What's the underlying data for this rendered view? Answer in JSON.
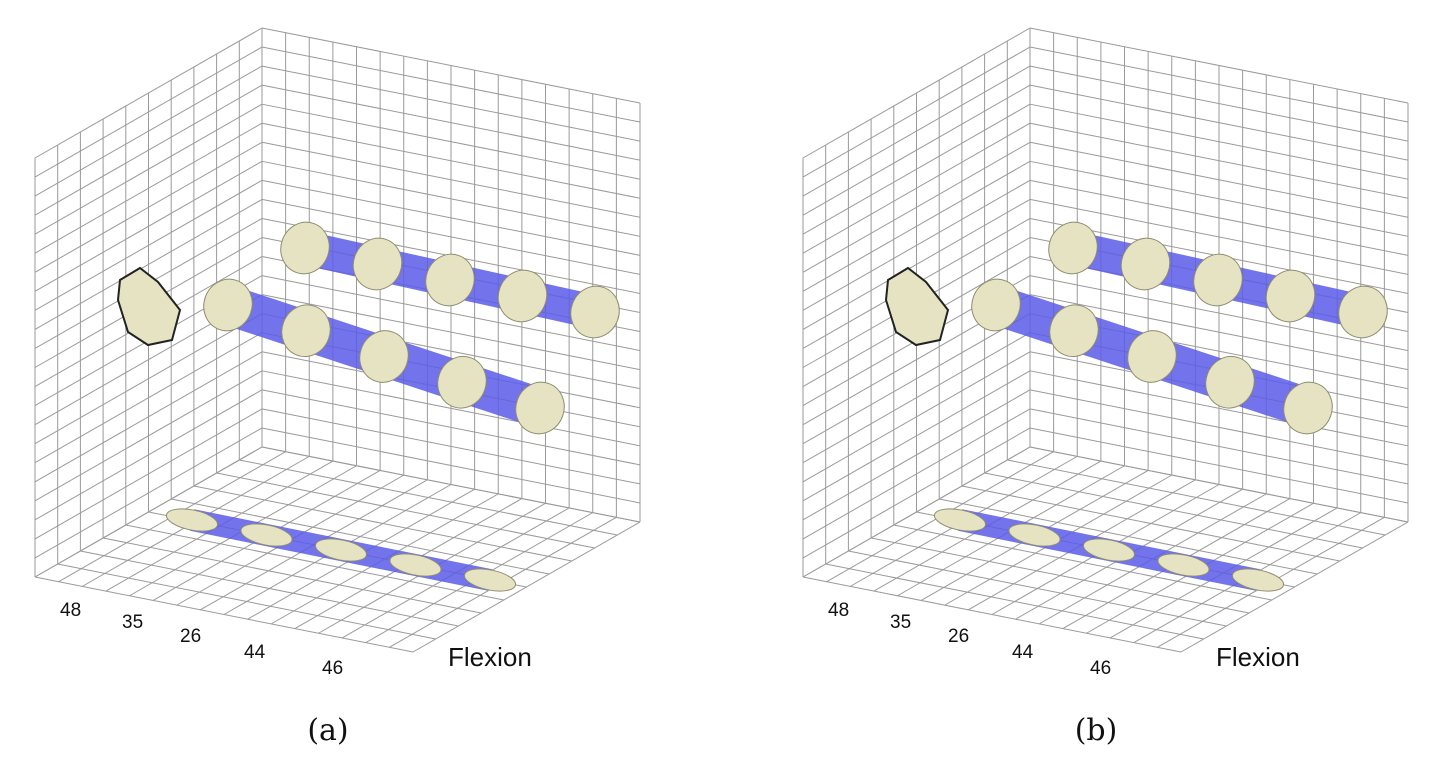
{
  "panels": [
    {
      "tick_labels": [
        "48",
        "35",
        "26",
        "44",
        "46"
      ],
      "axis_label": "Flexion",
      "caption": "(a)"
    },
    {
      "tick_labels": [
        "48",
        "35",
        "26",
        "44",
        "46"
      ],
      "axis_label": "Flexion",
      "caption": "(b)"
    }
  ]
}
